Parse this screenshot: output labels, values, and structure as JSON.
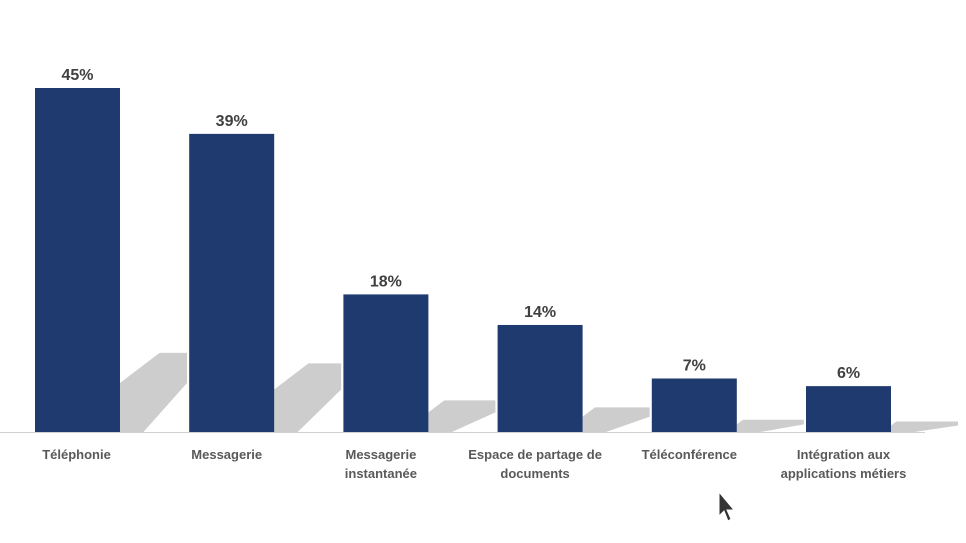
{
  "chart_data": {
    "type": "bar",
    "categories": [
      [
        "Téléphonie"
      ],
      [
        "Messagerie"
      ],
      [
        "Messagerie",
        "instantanée"
      ],
      [
        "Espace de partage de",
        "documents"
      ],
      [
        "Téléconférence"
      ],
      [
        "Intégration aux",
        "applications métiers"
      ]
    ],
    "values": [
      45,
      39,
      18,
      14,
      7,
      6
    ],
    "data_labels": [
      "45%",
      "39%",
      "18%",
      "14%",
      "7%",
      "6%"
    ],
    "unit": "%",
    "ylim": [
      0,
      45
    ],
    "grid": false,
    "bar_color": "#1F3A6E",
    "shadow_color": "#C8C8C8"
  }
}
